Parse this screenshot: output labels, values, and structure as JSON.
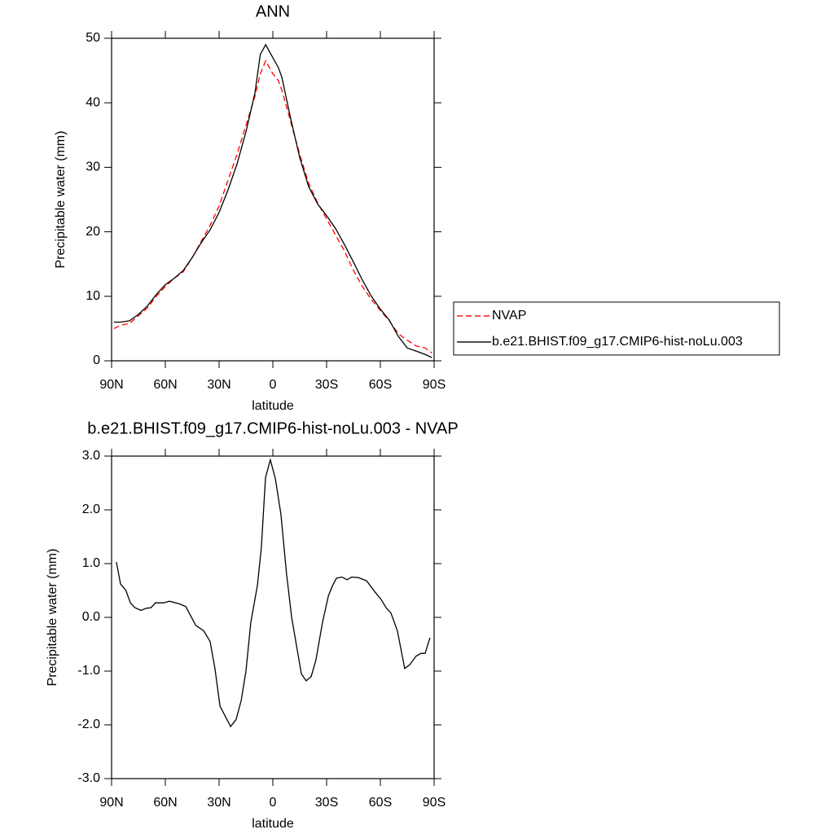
{
  "chart_data": [
    {
      "type": "line",
      "title": "ANN",
      "xlabel": "latitude",
      "ylabel": "Precipitable water (mm)",
      "x": [
        88.75,
        85,
        80,
        75,
        70,
        65,
        60,
        55,
        50,
        45,
        40,
        35,
        30,
        25,
        20,
        15,
        10,
        7,
        4,
        0,
        -3,
        -5,
        -10,
        -15,
        -20,
        -25,
        -30,
        -35,
        -40,
        -45,
        -50,
        -55,
        -60,
        -65,
        -70,
        -75,
        -80,
        -85,
        -88.75
      ],
      "xlim": [
        90,
        -90
      ],
      "xticks": [
        {
          "value": 90,
          "label": "90N"
        },
        {
          "value": 60,
          "label": "60N"
        },
        {
          "value": 30,
          "label": "30N"
        },
        0,
        {
          "value": -30,
          "label": "30S"
        },
        {
          "value": -60,
          "label": "60S"
        },
        {
          "value": -90,
          "label": "90S"
        }
      ],
      "ylim": [
        0,
        50
      ],
      "yticks": [
        0,
        10,
        20,
        30,
        40,
        50
      ],
      "legend": "right",
      "series": [
        {
          "name": "NVAP",
          "color": "#ff0000",
          "dashed": true,
          "values": [
            5,
            5.5,
            5.8,
            7,
            8.2,
            10,
            11.5,
            12.8,
            13.8,
            16,
            18.5,
            21,
            24,
            28,
            32,
            36.5,
            41,
            44.5,
            46.5,
            44.5,
            43.5,
            42,
            37,
            32,
            27.5,
            24.5,
            22,
            19.5,
            17,
            14,
            11.5,
            9.5,
            7.8,
            6.2,
            4.2,
            3.2,
            2.3,
            2,
            1.2
          ]
        },
        {
          "name": "b.e21.BHIST.f09_g17.CMIP6-hist-noLu.003",
          "color": "#000000",
          "dashed": false,
          "values": [
            6,
            6,
            6.2,
            7.2,
            8.5,
            10.3,
            11.8,
            12.8,
            14,
            16,
            18.3,
            20.3,
            23,
            26.5,
            30.5,
            35.5,
            41.5,
            47.5,
            49,
            47,
            45.5,
            44,
            37.5,
            31.5,
            27,
            24.3,
            22.5,
            20.5,
            18,
            15.3,
            12.5,
            10,
            8,
            6.3,
            3.8,
            2,
            1.5,
            1,
            0.5
          ]
        }
      ]
    },
    {
      "type": "line",
      "title": "b.e21.BHIST.f09_g17.CMIP6-hist-noLu.003 - NVAP",
      "xlabel": "latitude",
      "ylabel": "Precipitable water (mm)",
      "x": [
        87.3,
        85,
        82,
        79.5,
        77,
        73.6,
        70.5,
        68,
        65.5,
        61,
        57.7,
        52,
        48.6,
        43,
        38.6,
        35,
        32.3,
        29.5,
        23.6,
        20.5,
        17.7,
        15,
        12.3,
        8.6,
        6.4,
        4.1,
        1.4,
        -1.4,
        -4.5,
        -7.7,
        -10.5,
        -15.9,
        -18.6,
        -21.4,
        -24,
        -27.7,
        -31,
        -33.2,
        -35.5,
        -38.6,
        -41.4,
        -44,
        -47.7,
        -52.3,
        -56.8,
        -60.5,
        -63.2,
        -65.9,
        -69.5,
        -73.6,
        -76.4,
        -80,
        -82.7,
        -85,
        -87.7
      ],
      "values": [
        1.03,
        0.62,
        0.5,
        0.27,
        0.18,
        0.13,
        0.17,
        0.18,
        0.27,
        0.27,
        0.3,
        0.25,
        0.2,
        -0.15,
        -0.25,
        -0.45,
        -0.95,
        -1.65,
        -2.03,
        -1.9,
        -1.55,
        -1.0,
        -0.1,
        0.6,
        1.3,
        2.6,
        2.93,
        2.58,
        1.92,
        0.8,
        0.0,
        -1.05,
        -1.18,
        -1.1,
        -0.8,
        -0.1,
        0.4,
        0.58,
        0.73,
        0.75,
        0.7,
        0.75,
        0.74,
        0.68,
        0.48,
        0.33,
        0.18,
        0.08,
        -0.25,
        -0.95,
        -0.88,
        -0.72,
        -0.67,
        -0.67,
        -0.38
      ],
      "color": "#000000",
      "xlim": [
        90,
        -90
      ],
      "xticks": [
        {
          "value": 90,
          "label": "90N"
        },
        {
          "value": 60,
          "label": "60N"
        },
        {
          "value": 30,
          "label": "30N"
        },
        0,
        {
          "value": -30,
          "label": "30S"
        },
        {
          "value": -60,
          "label": "60S"
        },
        {
          "value": -90,
          "label": "90S"
        }
      ],
      "ylim": [
        -3,
        3
      ],
      "yticks": [
        {
          "value": -3,
          "label": "-3.0"
        },
        {
          "value": -2,
          "label": "-2.0"
        },
        {
          "value": -1,
          "label": "-1.0"
        },
        {
          "value": 0,
          "label": "0.0"
        },
        {
          "value": 1,
          "label": "1.0"
        },
        {
          "value": 2,
          "label": "2.0"
        },
        {
          "value": 3,
          "label": "3.0"
        }
      ]
    }
  ]
}
